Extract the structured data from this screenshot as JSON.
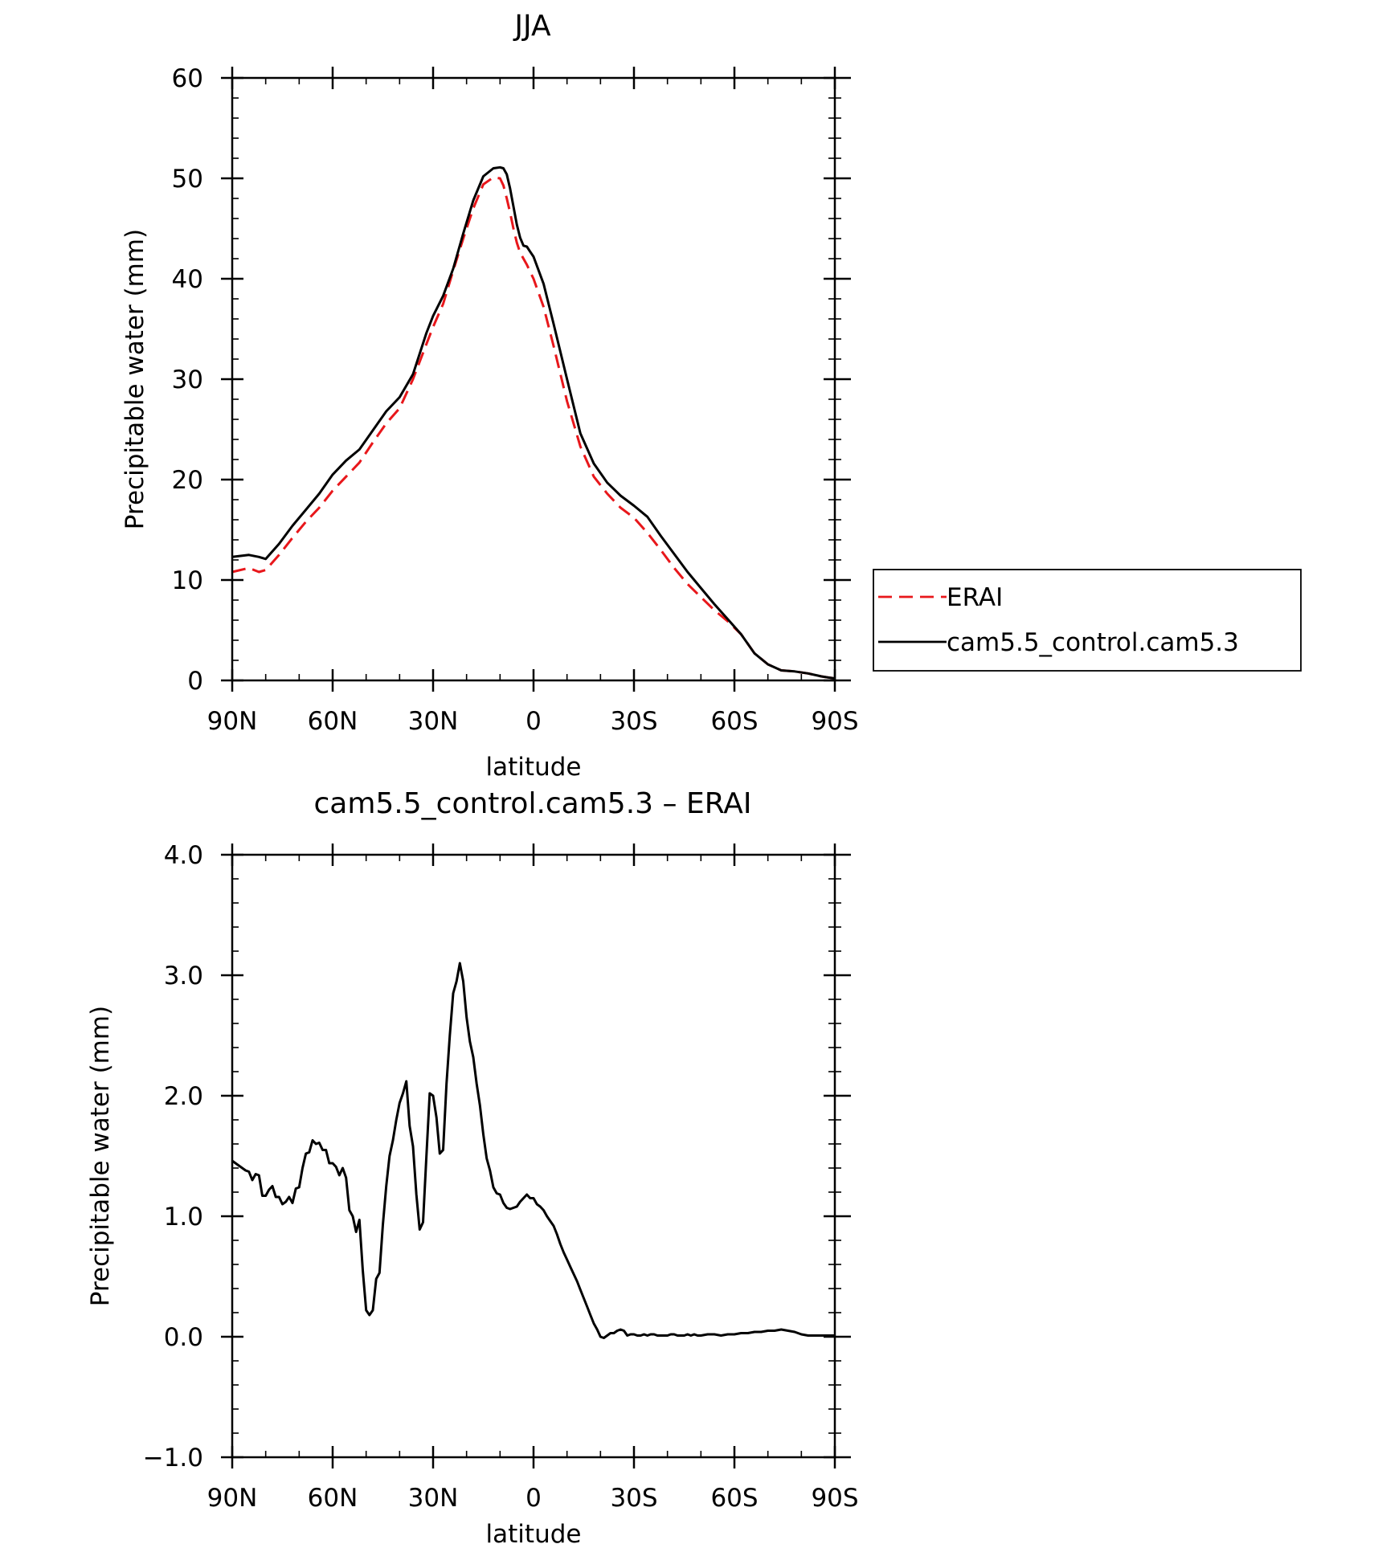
{
  "chart_data": [
    {
      "type": "line",
      "title": "JJA",
      "xlabel": "latitude",
      "ylabel": "Precipitable water (mm)",
      "xlim": [
        90,
        -90
      ],
      "ylim": [
        0,
        60
      ],
      "xticks": [
        90,
        60,
        30,
        0,
        -30,
        -60,
        -90
      ],
      "xtick_labels": [
        "90N",
        "60N",
        "30N",
        "0",
        "30S",
        "60S",
        "90S"
      ],
      "yticks": [
        0,
        10,
        20,
        30,
        40,
        50,
        60
      ],
      "ytick_labels": [
        "0",
        "10",
        "20",
        "30",
        "40",
        "50",
        "60"
      ],
      "legend_position": "right",
      "x": [
        90,
        85,
        82,
        80,
        76,
        72,
        68,
        64,
        60,
        56,
        52,
        48,
        44,
        40,
        36,
        32,
        30,
        27,
        24,
        21,
        18,
        15,
        12,
        10,
        9,
        8,
        7,
        6,
        5,
        4,
        3,
        2,
        1,
        0,
        -3,
        -6,
        -10,
        -14,
        -18,
        -22,
        -26,
        -30,
        -34,
        -38,
        -42,
        -46,
        -50,
        -54,
        -58,
        -62,
        -66,
        -70,
        -74,
        -78,
        -82,
        -86,
        -88,
        -90
      ],
      "series": [
        {
          "name": "ERAI",
          "color": "#e8171b",
          "dash": "dashed",
          "values": [
            10.8,
            11.2,
            10.8,
            11.0,
            12.5,
            14.2,
            15.8,
            17.2,
            18.9,
            20.3,
            21.7,
            23.7,
            25.6,
            27.1,
            30.0,
            33.5,
            35.2,
            37.5,
            40.8,
            44.0,
            47.0,
            49.4,
            50.1,
            50.0,
            49.3,
            48.0,
            46.6,
            45.0,
            43.6,
            42.6,
            42.0,
            41.4,
            40.7,
            40.0,
            37.2,
            33.3,
            27.8,
            23.3,
            20.3,
            18.6,
            17.2,
            16.2,
            14.7,
            13.0,
            11.2,
            9.6,
            8.3,
            7.0,
            5.9,
            4.6,
            2.7,
            1.6,
            1.0,
            0.9,
            0.7,
            0.4,
            0.3,
            0.2
          ]
        },
        {
          "name": "cam5.5_control.cam5.3",
          "color": "#000000",
          "dash": "solid",
          "values": [
            12.3,
            12.5,
            12.3,
            12.1,
            13.6,
            15.4,
            17.0,
            18.6,
            20.5,
            21.9,
            23.0,
            24.9,
            26.8,
            28.2,
            30.5,
            34.6,
            36.3,
            38.3,
            41.0,
            44.5,
            47.8,
            50.2,
            51.0,
            51.1,
            51.0,
            50.4,
            49.0,
            47.2,
            45.4,
            44.1,
            43.3,
            43.2,
            42.7,
            42.2,
            39.5,
            35.5,
            30.0,
            24.6,
            21.6,
            19.7,
            18.4,
            17.4,
            16.3,
            14.4,
            12.6,
            10.8,
            9.2,
            7.6,
            6.1,
            4.6,
            2.7,
            1.6,
            1.0,
            0.9,
            0.7,
            0.4,
            0.3,
            0.2
          ]
        }
      ]
    },
    {
      "type": "line",
      "title": "cam5.5_control.cam5.3 – ERAI",
      "xlabel": "latitude",
      "ylabel": "Precipitable water (mm)",
      "xlim": [
        90,
        -90
      ],
      "ylim": [
        -1.0,
        4.0
      ],
      "xticks": [
        90,
        60,
        30,
        0,
        -30,
        -60,
        -90
      ],
      "xtick_labels": [
        "90N",
        "60N",
        "30N",
        "0",
        "30S",
        "60S",
        "90S"
      ],
      "yticks": [
        -1.0,
        0.0,
        1.0,
        2.0,
        3.0,
        4.0
      ],
      "ytick_labels": [
        "−1.0",
        "0.0",
        "1.0",
        "2.0",
        "3.0",
        "4.0"
      ],
      "x": [
        90,
        88,
        86,
        85,
        84,
        83,
        82,
        81,
        80,
        79,
        78,
        77,
        76,
        75,
        74,
        73,
        72,
        71,
        70,
        69,
        68,
        67,
        66,
        65,
        64,
        63,
        62,
        61,
        60,
        59,
        58,
        57,
        56,
        55,
        54,
        53,
        52,
        51,
        50,
        49,
        48,
        47,
        46,
        45,
        44,
        43,
        42,
        41,
        40,
        39,
        38,
        37,
        36,
        35,
        34,
        33,
        32,
        31,
        30,
        29,
        28,
        27,
        26,
        25,
        24,
        23,
        22,
        21,
        20,
        19,
        18,
        17,
        16,
        15,
        14,
        13,
        12,
        11,
        10,
        9,
        8,
        7,
        6,
        5,
        4,
        3,
        2,
        1,
        0,
        -1,
        -2,
        -3,
        -4,
        -5,
        -6,
        -7,
        -8,
        -9,
        -10,
        -11,
        -12,
        -13,
        -14,
        -15,
        -16,
        -17,
        -18,
        -19,
        -20,
        -21,
        -22,
        -23,
        -24,
        -25,
        -26,
        -27,
        -28,
        -29,
        -30,
        -31,
        -32,
        -33,
        -34,
        -35,
        -36,
        -37,
        -38,
        -39,
        -40,
        -41,
        -42,
        -43,
        -44,
        -45,
        -46,
        -47,
        -48,
        -49,
        -50,
        -52,
        -54,
        -56,
        -58,
        -60,
        -62,
        -64,
        -66,
        -68,
        -70,
        -72,
        -74,
        -76,
        -78,
        -80,
        -82,
        -84,
        -86,
        -88,
        -90
      ],
      "series": [
        {
          "name": "",
          "color": "#000000",
          "dash": "solid",
          "values": [
            1.46,
            1.42,
            1.38,
            1.37,
            1.3,
            1.35,
            1.34,
            1.17,
            1.17,
            1.22,
            1.25,
            1.16,
            1.16,
            1.1,
            1.12,
            1.16,
            1.11,
            1.23,
            1.24,
            1.4,
            1.52,
            1.53,
            1.63,
            1.6,
            1.61,
            1.55,
            1.55,
            1.44,
            1.44,
            1.41,
            1.34,
            1.4,
            1.32,
            1.05,
            1.0,
            0.87,
            0.97,
            0.55,
            0.22,
            0.18,
            0.22,
            0.48,
            0.53,
            0.93,
            1.25,
            1.5,
            1.63,
            1.8,
            1.94,
            2.02,
            2.12,
            1.75,
            1.58,
            1.18,
            0.89,
            0.95,
            1.5,
            2.02,
            2.0,
            1.82,
            1.52,
            1.55,
            2.1,
            2.5,
            2.85,
            2.95,
            3.1,
            2.95,
            2.65,
            2.45,
            2.32,
            2.1,
            1.92,
            1.68,
            1.48,
            1.38,
            1.24,
            1.19,
            1.18,
            1.11,
            1.07,
            1.06,
            1.07,
            1.08,
            1.12,
            1.15,
            1.18,
            1.15,
            1.15,
            1.1,
            1.08,
            1.05,
            1.0,
            0.96,
            0.92,
            0.85,
            0.77,
            0.7,
            0.64,
            0.58,
            0.52,
            0.46,
            0.39,
            0.32,
            0.25,
            0.18,
            0.11,
            0.06,
            0.0,
            -0.01,
            0.01,
            0.03,
            0.03,
            0.05,
            0.06,
            0.05,
            0.01,
            0.02,
            0.02,
            0.01,
            0.01,
            0.02,
            0.01,
            0.02,
            0.02,
            0.01,
            0.01,
            0.01,
            0.01,
            0.02,
            0.02,
            0.01,
            0.01,
            0.01,
            0.02,
            0.01,
            0.02,
            0.01,
            0.01,
            0.02,
            0.02,
            0.01,
            0.02,
            0.02,
            0.03,
            0.03,
            0.04,
            0.04,
            0.05,
            0.05,
            0.06,
            0.05,
            0.04,
            0.02,
            0.01,
            0.01,
            0.01,
            0.01,
            0.01
          ]
        }
      ]
    }
  ]
}
